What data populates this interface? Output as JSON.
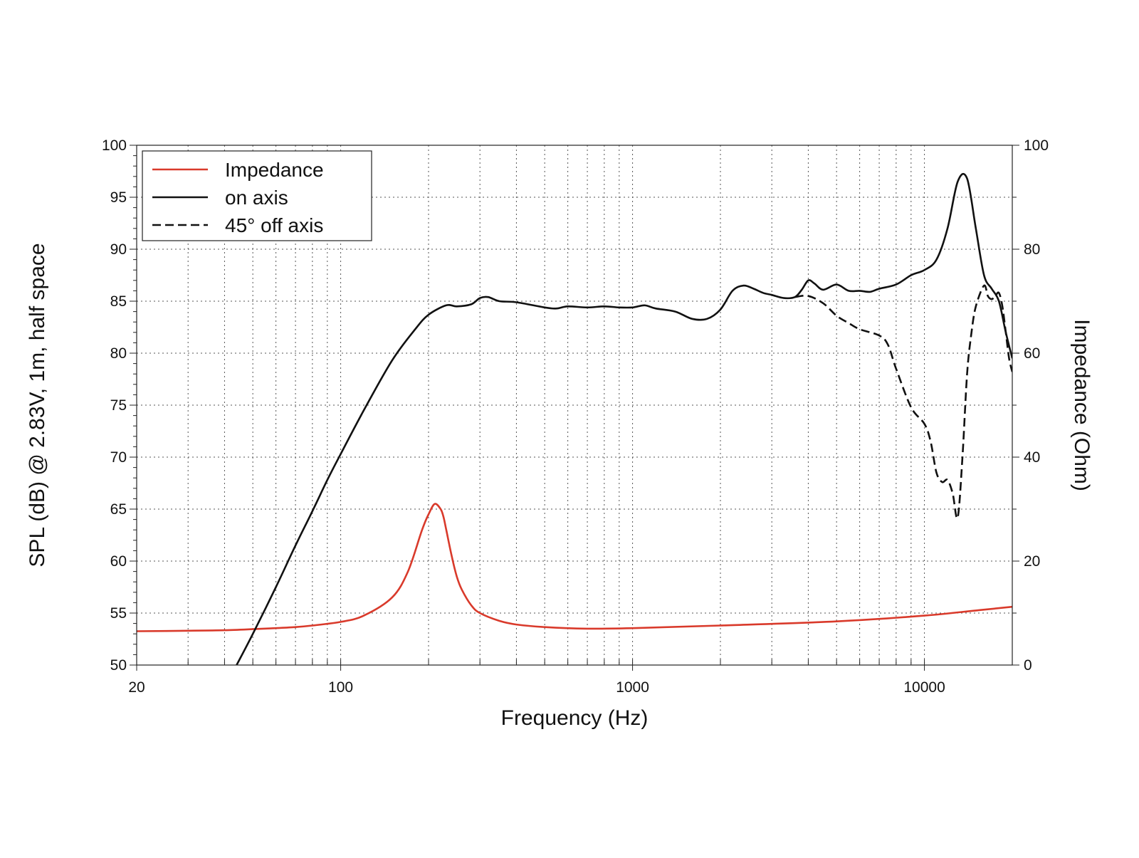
{
  "chart_data": {
    "type": "line",
    "xlabel": "Frequency (Hz)",
    "ylabel": "SPL (dB) @ 2.83V, 1m, half space",
    "y2label": "Impedance (Ohm)",
    "xscale": "log",
    "xlim": [
      20,
      20000
    ],
    "ylim": [
      50,
      100
    ],
    "y2lim": [
      0,
      100
    ],
    "grid": "dotted",
    "legend_position": "top-left",
    "x_tick_labels": [
      {
        "value": 20,
        "label": "20"
      },
      {
        "value": 100,
        "label": "100"
      },
      {
        "value": 1000,
        "label": "1000"
      },
      {
        "value": 10000,
        "label": "10000"
      }
    ],
    "y_ticks": [
      50,
      55,
      60,
      65,
      70,
      75,
      80,
      85,
      90,
      95,
      100
    ],
    "y2_ticks": [
      0,
      20,
      40,
      60,
      80,
      100
    ],
    "series": [
      {
        "name": "Impedance",
        "axis": "right",
        "color": "#d93a2b",
        "dash": "solid",
        "x": [
          20,
          30,
          40,
          50,
          60,
          70,
          80,
          100,
          120,
          150,
          170,
          190,
          200,
          210,
          220,
          225,
          230,
          240,
          250,
          260,
          280,
          300,
          350,
          400,
          500,
          700,
          1000,
          2000,
          5000,
          10000,
          15000,
          20000
        ],
        "y": [
          6.5,
          6.6,
          6.7,
          6.9,
          7.1,
          7.3,
          7.6,
          8.3,
          9.5,
          13,
          18,
          26,
          29,
          31,
          30,
          28.5,
          26,
          21,
          17,
          14.5,
          11.5,
          10,
          8.5,
          7.8,
          7.3,
          7.0,
          7.1,
          7.6,
          8.4,
          9.5,
          10.5,
          11.2
        ]
      },
      {
        "name": "on axis",
        "axis": "left",
        "color": "#111111",
        "dash": "solid",
        "x": [
          44,
          50,
          60,
          70,
          80,
          90,
          100,
          120,
          150,
          180,
          200,
          230,
          250,
          280,
          300,
          320,
          350,
          400,
          500,
          550,
          600,
          700,
          800,
          900,
          1000,
          1100,
          1200,
          1400,
          1600,
          1800,
          2000,
          2200,
          2400,
          2600,
          2800,
          3000,
          3300,
          3600,
          3800,
          4000,
          4200,
          4500,
          5000,
          5500,
          6000,
          6500,
          7000,
          8000,
          9000,
          10000,
          11000,
          12000,
          13000,
          14000,
          15000,
          16000,
          17000,
          18000,
          19000,
          20000
        ],
        "y": [
          50,
          53,
          57.5,
          61.5,
          64.8,
          67.8,
          70.3,
          74.5,
          79.3,
          82.3,
          83.7,
          84.6,
          84.5,
          84.7,
          85.3,
          85.4,
          85.0,
          84.9,
          84.4,
          84.3,
          84.5,
          84.4,
          84.5,
          84.4,
          84.4,
          84.6,
          84.3,
          84.0,
          83.3,
          83.3,
          84.2,
          86.0,
          86.5,
          86.2,
          85.8,
          85.6,
          85.3,
          85.4,
          86.1,
          87.0,
          86.7,
          86.1,
          86.6,
          86.0,
          86.0,
          85.9,
          86.2,
          86.6,
          87.5,
          88.0,
          89.0,
          92.0,
          96.5,
          96.8,
          92.0,
          87.5,
          86.2,
          85.0,
          82.0,
          79.5
        ]
      },
      {
        "name": "45° off axis",
        "axis": "left",
        "color": "#111111",
        "dash": "dashed",
        "x": [
          3600,
          4000,
          4500,
          5000,
          5500,
          6000,
          7000,
          7500,
          8000,
          9000,
          10000,
          10500,
          11000,
          11500,
          12000,
          12500,
          13000,
          13500,
          14000,
          14500,
          15000,
          16000,
          16500,
          17000,
          17500,
          18000,
          18500,
          19000,
          19500,
          20000
        ],
        "y": [
          85.4,
          85.5,
          84.8,
          83.6,
          82.9,
          82.3,
          81.7,
          80.8,
          78.5,
          74.8,
          73.2,
          71.5,
          68.5,
          67.6,
          67.8,
          66.5,
          64.2,
          70.0,
          78.0,
          82.0,
          84.5,
          86.5,
          85.5,
          85.2,
          85.5,
          85.8,
          84.5,
          82.0,
          79.5,
          78.2
        ]
      }
    ]
  }
}
